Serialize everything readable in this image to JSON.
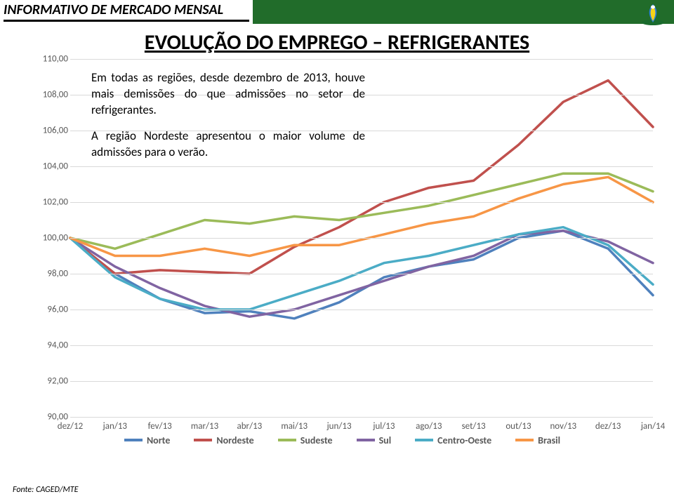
{
  "header": {
    "title": "INFORMATIVO DE MERCADO MENSAL"
  },
  "main_title": "EVOLUÇÃO DO EMPREGO – REFRIGERANTES",
  "paragraphs": {
    "p1": "Em todas as regiões, desde dezembro de 2013, houve mais demissões do que admissões no setor de refrigerantes.",
    "p2": "A região Nordeste apresentou o maior volume de admissões para o verão."
  },
  "source": "Fonte: CAGED/MTE",
  "chart": {
    "type": "line",
    "ylim": [
      90,
      110
    ],
    "ytick_step": 2,
    "y_ticks": [
      "90,00",
      "92,00",
      "94,00",
      "96,00",
      "98,00",
      "100,00",
      "102,00",
      "104,00",
      "106,00",
      "108,00",
      "110,00"
    ],
    "x_labels": [
      "dez/12",
      "jan/13",
      "fev/13",
      "mar/13",
      "abr/13",
      "mai/13",
      "jun/13",
      "jul/13",
      "ago/13",
      "set/13",
      "out/13",
      "nov/13",
      "dez/13",
      "jan/14"
    ],
    "grid_color": "#d9d9d9",
    "background_color": "#ffffff",
    "line_width": 3.5,
    "series": [
      {
        "name": "Norte",
        "color": "#4f81bd",
        "values": [
          100.0,
          98.0,
          96.6,
          95.8,
          95.9,
          95.5,
          96.4,
          97.8,
          98.4,
          98.8,
          100.0,
          100.4,
          99.4,
          96.8
        ]
      },
      {
        "name": "Nordeste",
        "color": "#c0504d",
        "values": [
          100.0,
          98.0,
          98.2,
          98.1,
          98.0,
          99.5,
          100.6,
          102.0,
          102.8,
          103.2,
          105.2,
          107.6,
          108.8,
          106.2
        ]
      },
      {
        "name": "Sudeste",
        "color": "#9bbb59",
        "values": [
          100.0,
          99.4,
          100.2,
          101.0,
          100.8,
          101.2,
          101.0,
          101.4,
          101.8,
          102.4,
          103.0,
          103.6,
          103.6,
          102.6
        ]
      },
      {
        "name": "Sul",
        "color": "#8064a2",
        "values": [
          100.0,
          98.4,
          97.2,
          96.2,
          95.6,
          96.0,
          96.8,
          97.6,
          98.4,
          99.0,
          100.2,
          100.4,
          99.8,
          98.6
        ]
      },
      {
        "name": "Centro-Oeste",
        "color": "#4bacc6",
        "values": [
          100.0,
          97.8,
          96.6,
          96.0,
          96.0,
          96.8,
          97.6,
          98.6,
          99.0,
          99.6,
          100.2,
          100.6,
          99.6,
          97.4
        ]
      },
      {
        "name": "Brasil",
        "color": "#f79646",
        "values": [
          100.0,
          99.0,
          99.0,
          99.4,
          99.0,
          99.6,
          99.6,
          100.2,
          100.8,
          101.2,
          102.2,
          103.0,
          103.4,
          102.0
        ]
      }
    ],
    "legend_labels": {
      "norte": "Norte",
      "nordeste": "Nordeste",
      "sudeste": "Sudeste",
      "sul": "Sul",
      "centro": "Centro-Oeste",
      "brasil": "Brasil"
    }
  }
}
